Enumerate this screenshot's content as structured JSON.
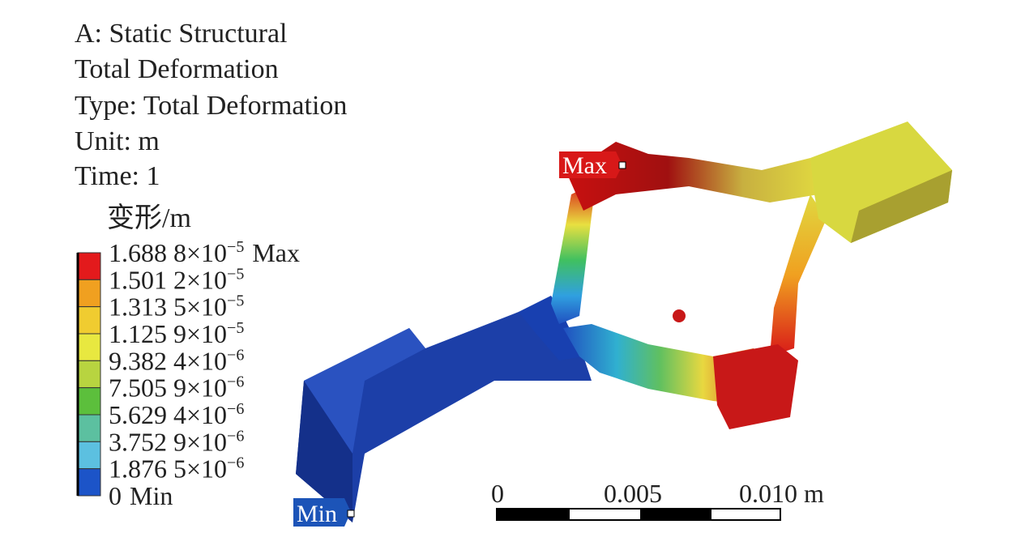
{
  "header": {
    "lines": [
      "A: Static Structural",
      "Total Deformation",
      "Type: Total Deformation",
      "Unit: m",
      "Time: 1"
    ]
  },
  "legend": {
    "title": "变形/m",
    "labels": [
      {
        "mantissa": "1.688 8×10",
        "exponent": "−5",
        "suffix": "Max"
      },
      {
        "mantissa": "1.501 2×10",
        "exponent": "−5"
      },
      {
        "mantissa": "1.313 5×10",
        "exponent": "−5"
      },
      {
        "mantissa": "1.125 9×10",
        "exponent": "−5"
      },
      {
        "mantissa": "9.382 4×10",
        "exponent": "−6"
      },
      {
        "mantissa": "7.505 9×10",
        "exponent": "−6"
      },
      {
        "mantissa": "5.629 4×10",
        "exponent": "−6"
      },
      {
        "mantissa": "3.752 9×10",
        "exponent": "−6"
      },
      {
        "mantissa": "1.876 5×10",
        "exponent": "−6"
      },
      {
        "mantissa": "0",
        "suffix": "Min"
      }
    ],
    "colors": [
      "#e31a1c",
      "#f0a020",
      "#f0cc30",
      "#e8e840",
      "#b8d440",
      "#5cbf3c",
      "#5cc0a0",
      "#5cc0e0",
      "#1c54c8"
    ]
  },
  "markers": {
    "max": "Max",
    "min": "Min"
  },
  "scale_bar": {
    "labels": [
      "0",
      "0.005",
      "0.010 m"
    ]
  }
}
